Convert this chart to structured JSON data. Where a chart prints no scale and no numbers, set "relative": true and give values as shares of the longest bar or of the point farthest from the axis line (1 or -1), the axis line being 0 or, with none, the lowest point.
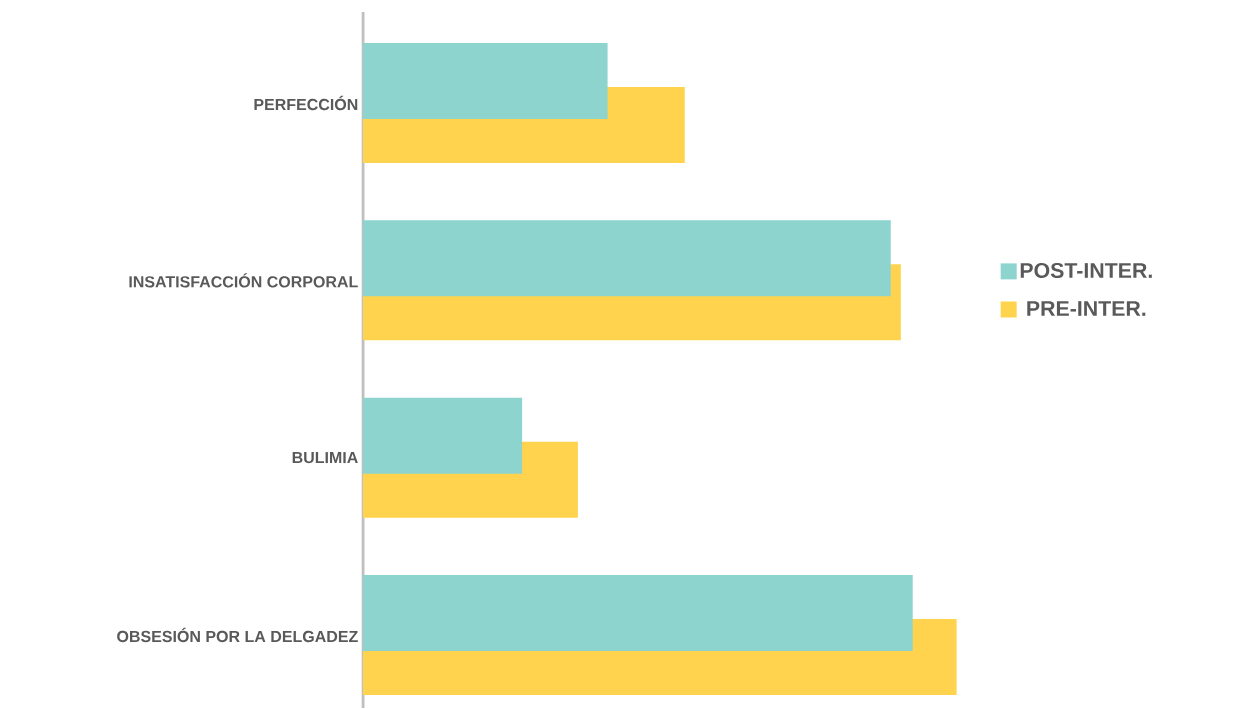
{
  "chart_data": {
    "type": "bar",
    "orientation": "horizontal",
    "relative": true,
    "legend": "right",
    "categories": [
      "PERFECCIÓN",
      "INSATISFACCIÓN  CORPORAL",
      "BULIMIA",
      "OBSESIÓN POR LA DELGADEZ"
    ],
    "series": [
      {
        "name": "POST-INTER.",
        "color": "#8dd4cf",
        "values": [
          0.412,
          0.889,
          0.268,
          0.926
        ]
      },
      {
        "name": "PRE-INTER.",
        "color": "#ffd34d",
        "values": [
          0.542,
          0.906,
          0.362,
          1.0
        ]
      }
    ]
  }
}
